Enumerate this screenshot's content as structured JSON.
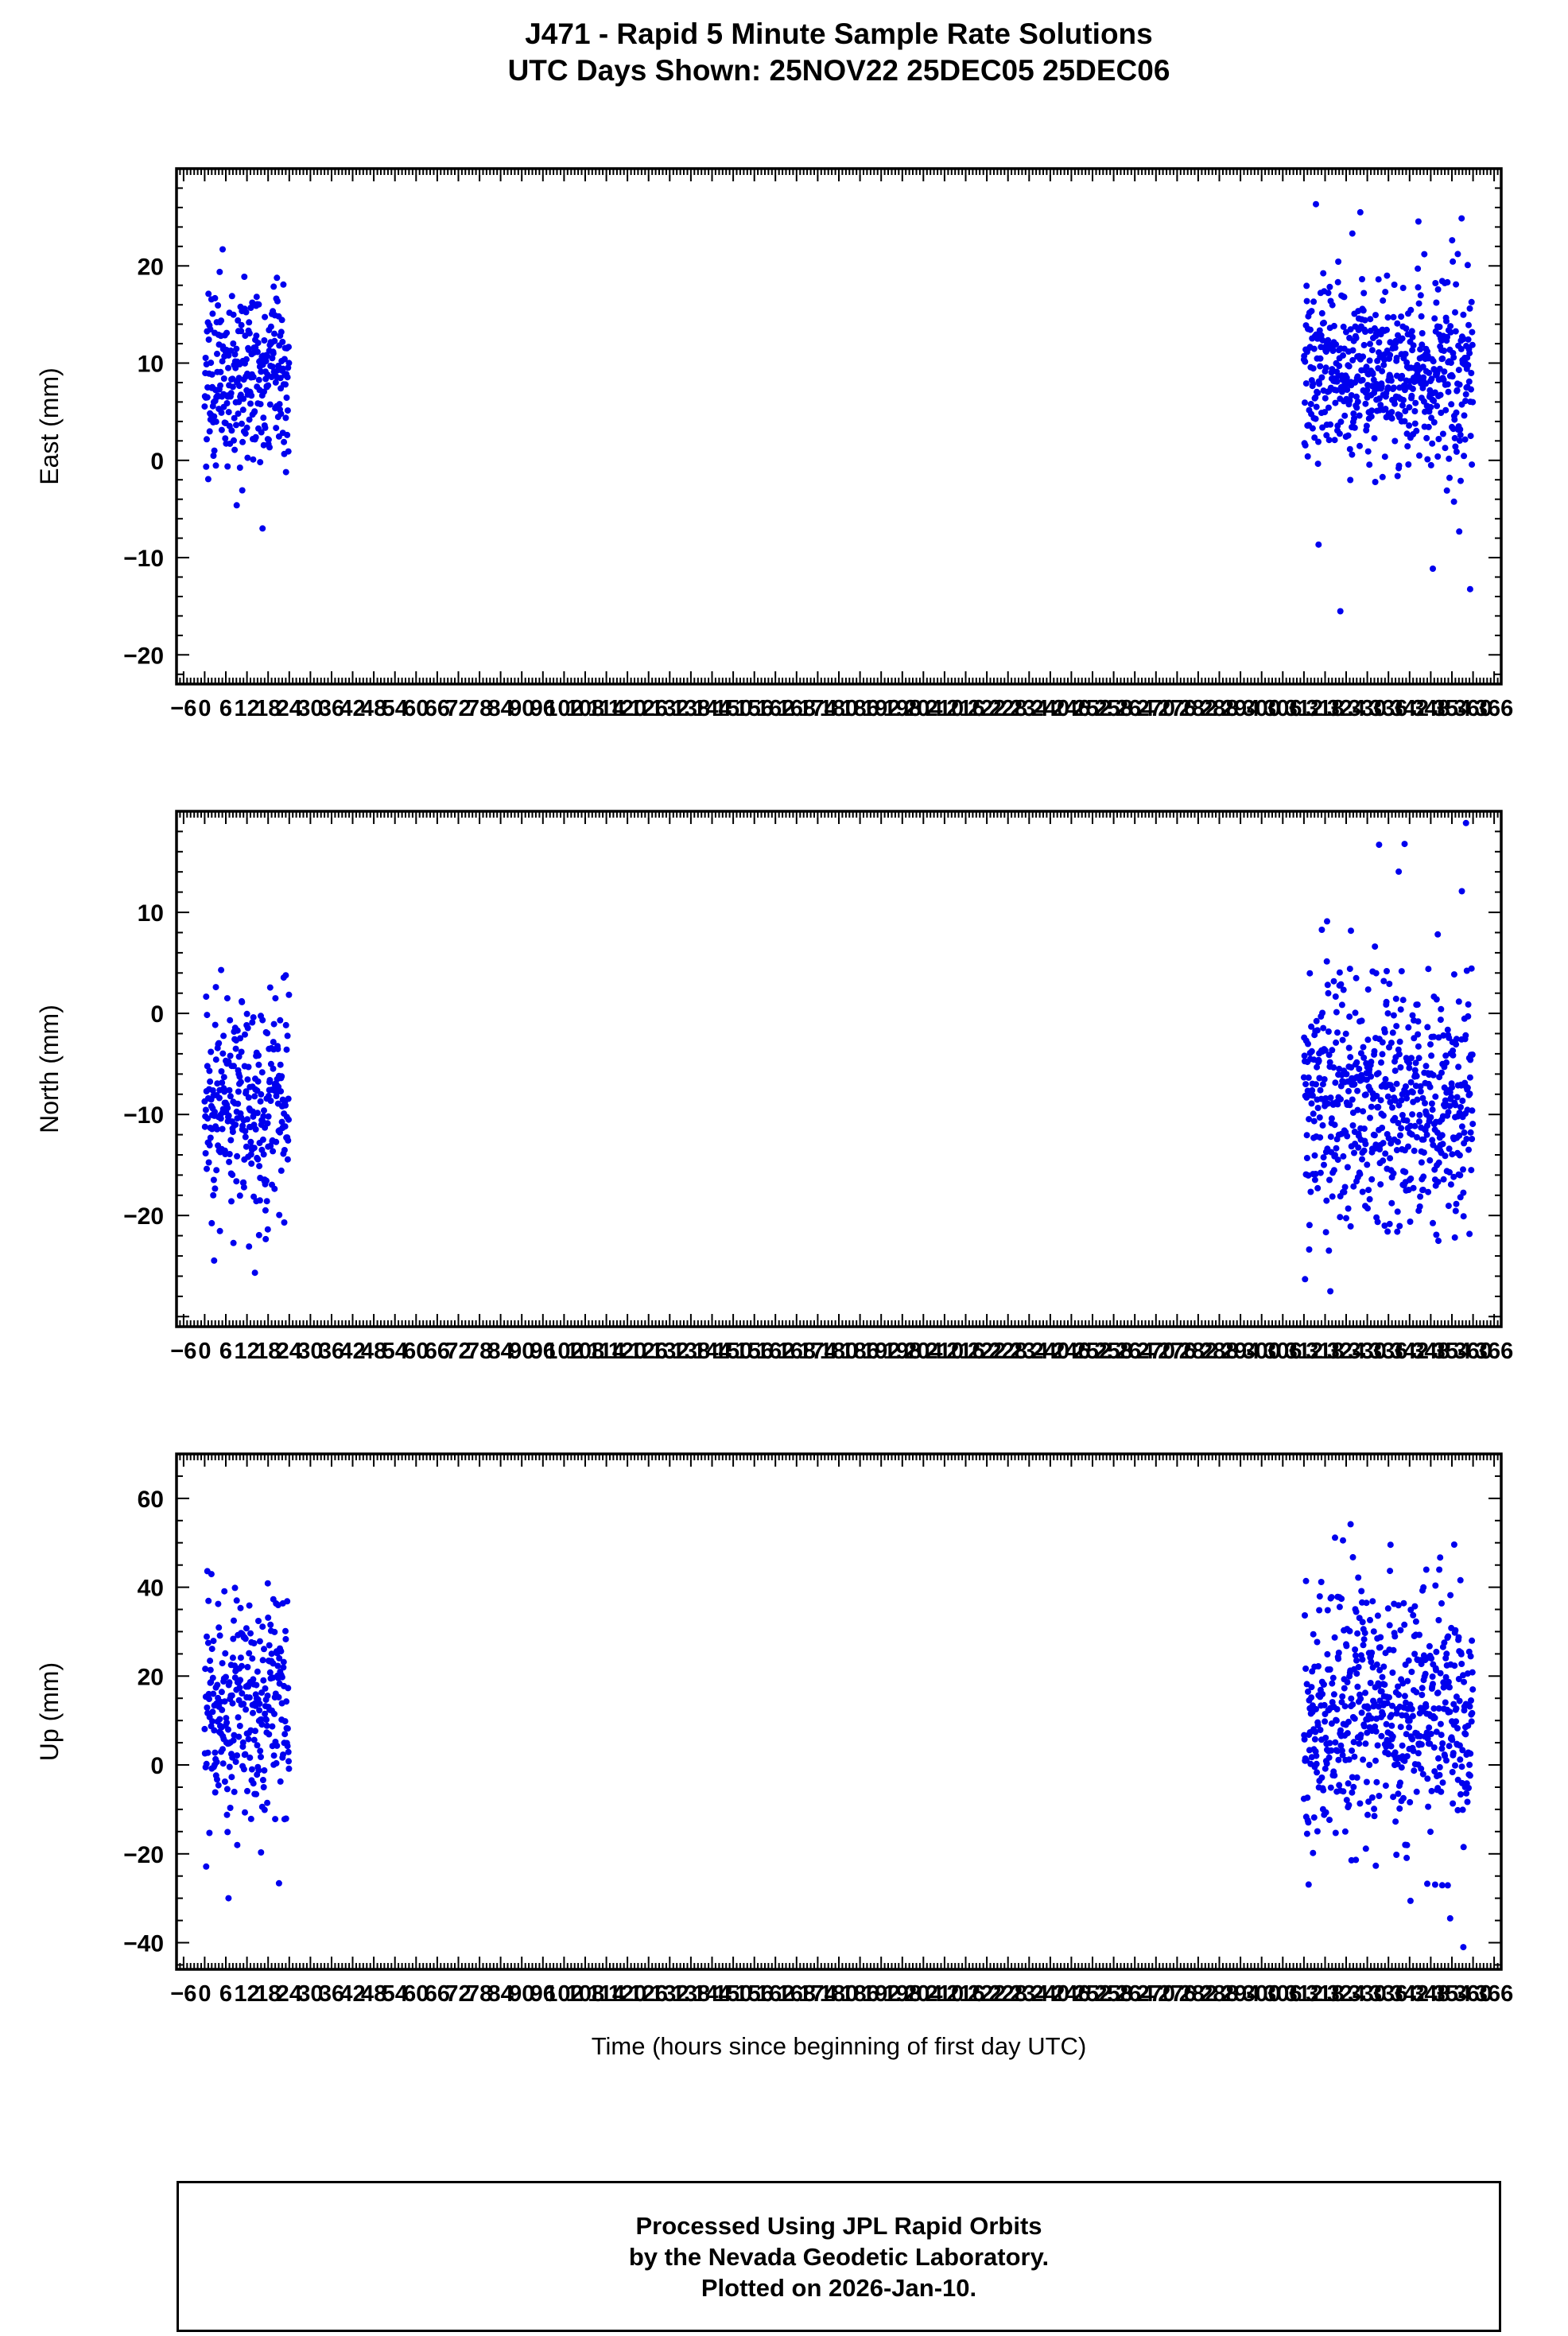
{
  "page": {
    "title_line1": "J471 - Rapid 5 Minute Sample Rate Solutions",
    "title_line2": "UTC Days Shown:  25NOV22 25DEC05 25DEC06",
    "xlabel": "Time (hours since beginning of first day UTC)",
    "footer_line1": "Processed Using JPL Rapid Orbits",
    "footer_line2": "by the Nevada Geodetic Laboratory.",
    "footer_line3": "Plotted on 2026-Jan-10."
  },
  "style": {
    "marker_color": "#0000ee",
    "axis_color": "#000000",
    "background": "#ffffff"
  },
  "chart_data": [
    {
      "type": "scatter",
      "panel": "east",
      "title": "",
      "ylabel": "East (mm)",
      "xlabel": "Time (hours since beginning of first day UTC)",
      "grid": false,
      "legend": null,
      "xlim": [
        -8,
        368
      ],
      "ylim": [
        -23,
        30
      ],
      "x_minor_tick": 1,
      "x_major_tick": 6,
      "y_minor_tick": 2,
      "y_major_tick": 10,
      "x_label_start": -6,
      "x_label_end": 366,
      "x_label_step": 6,
      "y_tick_labels": [
        20,
        10,
        0,
        -10,
        -20
      ],
      "marker": "circle",
      "marker_color": "#0000ee",
      "marker_radius": 4,
      "seed": 101,
      "series": [
        {
          "name": "25NOV22",
          "x_start": 0,
          "sample_minutes": 5,
          "n": 288,
          "y_mean": 8.8,
          "y_std": 4.6,
          "tail_frac": 0.03,
          "tail_std": 9,
          "y_min": -7,
          "y_max": 21.7
        },
        {
          "name": "25DEC05-25DEC06",
          "x_start": 312,
          "sample_minutes": 5,
          "n": 576,
          "y_mean": 9.2,
          "y_std": 4.8,
          "tail_frac": 0.06,
          "tail_std": 11,
          "y_min": -20,
          "y_max": 27.5
        }
      ]
    },
    {
      "type": "scatter",
      "panel": "north",
      "title": "",
      "ylabel": "North (mm)",
      "xlabel": "Time (hours since beginning of first day UTC)",
      "grid": false,
      "legend": null,
      "xlim": [
        -8,
        368
      ],
      "ylim": [
        -31,
        20
      ],
      "x_minor_tick": 1,
      "x_major_tick": 6,
      "y_minor_tick": 2,
      "y_major_tick": 10,
      "x_label_start": -6,
      "x_label_end": 366,
      "x_label_step": 6,
      "y_tick_labels": [
        10,
        0,
        -10,
        -20
      ],
      "marker": "circle",
      "marker_color": "#0000ee",
      "marker_radius": 4,
      "seed": 202,
      "series": [
        {
          "name": "25NOV22",
          "x_start": 0,
          "sample_minutes": 5,
          "n": 288,
          "y_mean": -9.0,
          "y_std": 5.5,
          "tail_frac": 0.04,
          "tail_std": 10,
          "y_min": -27.5,
          "y_max": 9.8
        },
        {
          "name": "25DEC05-25DEC06",
          "x_start": 312,
          "sample_minutes": 5,
          "n": 576,
          "y_mean": -8.5,
          "y_std": 6.0,
          "tail_frac": 0.06,
          "tail_std": 11,
          "y_min": -27.5,
          "y_max": 19.5
        }
      ]
    },
    {
      "type": "scatter",
      "panel": "up",
      "title": "",
      "ylabel": "Up (mm)",
      "xlabel": "Time (hours since beginning of first day UTC)",
      "grid": false,
      "legend": null,
      "xlim": [
        -8,
        368
      ],
      "ylim": [
        -46,
        70
      ],
      "x_minor_tick": 1,
      "x_major_tick": 6,
      "y_minor_tick": 5,
      "y_major_tick": 20,
      "x_label_start": -6,
      "x_label_end": 366,
      "x_label_step": 6,
      "y_tick_labels": [
        60,
        40,
        20,
        0,
        -20,
        -40
      ],
      "marker": "circle",
      "marker_color": "#0000ee",
      "marker_radius": 4,
      "seed": 303,
      "series": [
        {
          "name": "25NOV22",
          "x_start": 0,
          "sample_minutes": 5,
          "n": 288,
          "y_mean": 13.0,
          "y_std": 13.0,
          "tail_frac": 0.03,
          "tail_std": 20,
          "y_min": -30,
          "y_max": 50
        },
        {
          "name": "25DEC05-25DEC06",
          "x_start": 312,
          "sample_minutes": 5,
          "n": 576,
          "y_mean": 12.0,
          "y_std": 14.0,
          "tail_frac": 0.05,
          "tail_std": 22,
          "y_min": -41,
          "y_max": 69
        }
      ]
    }
  ]
}
